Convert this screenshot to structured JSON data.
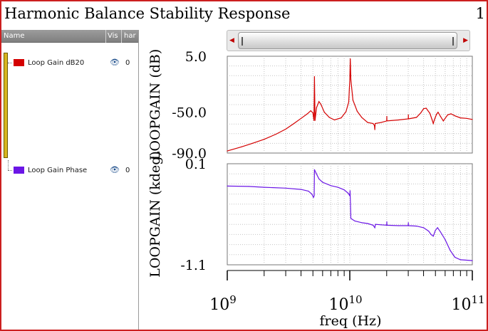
{
  "window": {
    "title": "Harmonic Balance Stability Response",
    "page_number": "1",
    "border_color": "#cc1f1f"
  },
  "legend": {
    "headers": {
      "name": "Name",
      "vis": "Vis",
      "har": "har"
    },
    "items": [
      {
        "label": "Loop Gain dB20",
        "color": "#d40000",
        "vis_icon": "eye-icon",
        "harmonic": "0"
      },
      {
        "label": "Loop Gain Phase",
        "color": "#6b16e6",
        "vis_icon": "eye-icon",
        "harmonic": "0"
      }
    ]
  },
  "scrollbar": {
    "left_arrow_icon": "triangle-left-icon",
    "right_arrow_icon": "triangle-right-icon"
  },
  "chart_data": {
    "type": "line",
    "x_scale": "log",
    "xlabel": "freq (Hz)",
    "xlim": [
      1000000000.0,
      100000000000.0
    ],
    "x_ticks": [
      {
        "value": 1000000000.0,
        "base": "10",
        "exp": "9"
      },
      {
        "value": 10000000000.0,
        "base": "10",
        "exp": "10"
      },
      {
        "value": 100000000000.0,
        "base": "10",
        "exp": "11"
      }
    ],
    "grid": true,
    "panels": [
      {
        "ylabel": "LOOPGAIN (dB)",
        "ylim": [
          -90.0,
          5.0
        ],
        "y_ticks": [
          "5.0",
          "-50.0",
          "-90.0"
        ],
        "y_tick_values": [
          5.0,
          -50.0,
          -90.0
        ],
        "series": [
          {
            "color": "#d40000",
            "points": [
              [
                1000000000.0,
                -88.0
              ],
              [
                1300000000.0,
                -84.0
              ],
              [
                1600000000.0,
                -80.5
              ],
              [
                2000000000.0,
                -76.5
              ],
              [
                2500000000.0,
                -71.5
              ],
              [
                3000000000.0,
                -66.5
              ],
              [
                3500000000.0,
                -61.0
              ],
              [
                4000000000.0,
                -56.0
              ],
              [
                4500000000.0,
                -51.5
              ],
              [
                4800000000.0,
                -48.5
              ],
              [
                5000000000.0,
                -50.5
              ],
              [
                5100000000.0,
                -58.0
              ],
              [
                5150000000.0,
                -15.0
              ],
              [
                5200000000.0,
                -58.0
              ],
              [
                5350000000.0,
                -45.5
              ],
              [
                5600000000.0,
                -39.5
              ],
              [
                5800000000.0,
                -42.0
              ],
              [
                6200000000.0,
                -50.0
              ],
              [
                6800000000.0,
                -55.0
              ],
              [
                7500000000.0,
                -57.5
              ],
              [
                8500000000.0,
                -55.5
              ],
              [
                9300000000.0,
                -49.5
              ],
              [
                9800000000.0,
                -40.0
              ],
              [
                10000000000.0,
                -18.0
              ],
              [
                10100000000.0,
                2.5
              ],
              [
                10200000000.0,
                -18.0
              ],
              [
                10600000000.0,
                -38.0
              ],
              [
                11500000000.0,
                -49.0
              ],
              [
                12500000000.0,
                -55.0
              ],
              [
                14000000000.0,
                -60.0
              ],
              [
                15500000000.0,
                -61.0
              ],
              [
                15900000000.0,
                -63.0
              ],
              [
                16000000000.0,
                -67.0
              ],
              [
                16100000000.0,
                -61.0
              ],
              [
                18000000000.0,
                -60.0
              ],
              [
                20000000000.0,
                -58.5
              ],
              [
                20050000000.0,
                -54.0
              ],
              [
                20100000000.0,
                -58.5
              ],
              [
                25000000000.0,
                -57.5
              ],
              [
                30000000000.0,
                -56.5
              ],
              [
                30050000000.0,
                -52.5
              ],
              [
                30100000000.0,
                -56.5
              ],
              [
                35000000000.0,
                -55.0
              ],
              [
                38000000000.0,
                -50.5
              ],
              [
                40000000000.0,
                -46.5
              ],
              [
                42000000000.0,
                -46.0
              ],
              [
                45000000000.0,
                -51.0
              ],
              [
                47000000000.0,
                -57.5
              ],
              [
                48000000000.0,
                -61.0
              ],
              [
                49000000000.0,
                -57.5
              ],
              [
                51000000000.0,
                -52.0
              ],
              [
                52500000000.0,
                -50.0
              ],
              [
                55000000000.0,
                -54.0
              ],
              [
                58000000000.0,
                -58.5
              ],
              [
                60000000000.0,
                -56.0
              ],
              [
                63000000000.0,
                -52.5
              ],
              [
                67000000000.0,
                -51.5
              ],
              [
                72000000000.0,
                -53.5
              ],
              [
                80000000000.0,
                -55.5
              ],
              [
                90000000000.0,
                -56.0
              ],
              [
                100000000000.0,
                -57.0
              ]
            ]
          }
        ]
      },
      {
        "ylabel": "LOOPGAIN (kdeg)",
        "ylim": [
          -1.1,
          0.1
        ],
        "y_ticks": [
          "0.1",
          "-1.1"
        ],
        "y_tick_values": [
          0.1,
          -1.1
        ],
        "series": [
          {
            "color": "#6b16e6",
            "points": [
              [
                1000000000.0,
                -0.165
              ],
              [
                1500000000.0,
                -0.17
              ],
              [
                2000000000.0,
                -0.18
              ],
              [
                3000000000.0,
                -0.19
              ],
              [
                4000000000.0,
                -0.205
              ],
              [
                4600000000.0,
                -0.225
              ],
              [
                4900000000.0,
                -0.26
              ],
              [
                5050000000.0,
                -0.3
              ],
              [
                5120000000.0,
                -0.28
              ],
              [
                5150000000.0,
                0.03
              ],
              [
                5300000000.0,
                -0.01
              ],
              [
                5600000000.0,
                -0.08
              ],
              [
                6000000000.0,
                -0.12
              ],
              [
                7000000000.0,
                -0.16
              ],
              [
                8000000000.0,
                -0.18
              ],
              [
                9000000000.0,
                -0.21
              ],
              [
                9700000000.0,
                -0.25
              ],
              [
                10000000000.0,
                -0.28
              ],
              [
                10050000000.0,
                -0.22
              ],
              [
                10200000000.0,
                -0.55
              ],
              [
                11000000000.0,
                -0.58
              ],
              [
                12500000000.0,
                -0.6
              ],
              [
                14000000000.0,
                -0.61
              ],
              [
                15500000000.0,
                -0.63
              ],
              [
                16000000000.0,
                -0.66
              ],
              [
                16200000000.0,
                -0.62
              ],
              [
                18000000000.0,
                -0.625
              ],
              [
                20000000000.0,
                -0.63
              ],
              [
                20050000000.0,
                -0.59
              ],
              [
                20100000000.0,
                -0.63
              ],
              [
                25000000000.0,
                -0.635
              ],
              [
                30000000000.0,
                -0.635
              ],
              [
                30050000000.0,
                -0.6
              ],
              [
                30100000000.0,
                -0.635
              ],
              [
                35000000000.0,
                -0.64
              ],
              [
                40000000000.0,
                -0.66
              ],
              [
                44000000000.0,
                -0.7
              ],
              [
                46000000000.0,
                -0.74
              ],
              [
                48000000000.0,
                -0.76
              ],
              [
                50000000000.0,
                -0.69
              ],
              [
                52000000000.0,
                -0.66
              ],
              [
                55000000000.0,
                -0.71
              ],
              [
                60000000000.0,
                -0.8
              ],
              [
                66000000000.0,
                -0.93
              ],
              [
                72000000000.0,
                -1.01
              ],
              [
                80000000000.0,
                -1.04
              ],
              [
                90000000000.0,
                -1.045
              ],
              [
                100000000000.0,
                -1.05
              ]
            ]
          }
        ]
      }
    ]
  }
}
